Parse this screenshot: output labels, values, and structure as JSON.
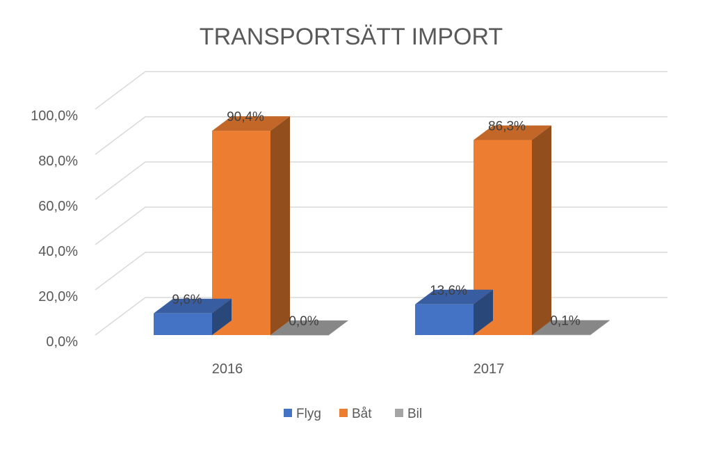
{
  "chart_data": {
    "type": "bar",
    "title": "TRANSPORTSÄTT IMPORT",
    "categories": [
      "2016",
      "2017"
    ],
    "series": [
      {
        "name": "Flyg",
        "color": "#4472c4",
        "values": [
          9.6,
          13.6
        ],
        "labels": [
          "9,6%",
          "13,6%"
        ]
      },
      {
        "name": "Båt",
        "color": "#ed7d31",
        "values": [
          90.4,
          86.3
        ],
        "labels": [
          "90,4%",
          "86,3%"
        ]
      },
      {
        "name": "Bil",
        "color": "#a5a5a5",
        "values": [
          0.0,
          0.1
        ],
        "labels": [
          "0,0%",
          "0,1%"
        ]
      }
    ],
    "yticks": [
      "0,0%",
      "20,0%",
      "40,0%",
      "60,0%",
      "80,0%",
      "100,0%"
    ],
    "ylim": [
      0,
      100
    ],
    "xlabel": "",
    "ylabel": "",
    "grid": true,
    "legend_position": "bottom",
    "style": "3d-column"
  }
}
